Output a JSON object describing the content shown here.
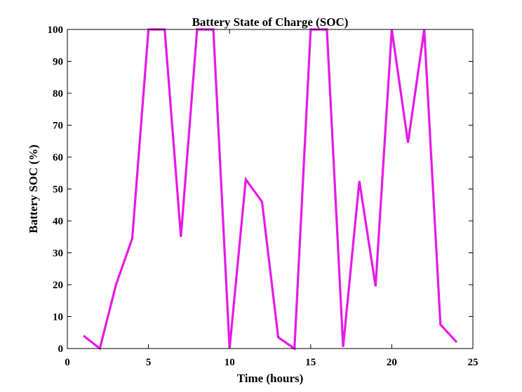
{
  "chart_data": {
    "type": "line",
    "title": "Battery State of Charge (SOC)",
    "xlabel": "Time (hours)",
    "ylabel": "Battery SOC (%)",
    "xlim": [
      0,
      25
    ],
    "ylim": [
      0,
      100
    ],
    "xticks": [
      0,
      5,
      10,
      15,
      20,
      25
    ],
    "yticks": [
      0,
      10,
      20,
      30,
      40,
      50,
      60,
      70,
      80,
      90,
      100
    ],
    "grid": false,
    "line_color": "#e619e6",
    "series": [
      {
        "x": [
          1,
          2,
          3,
          4,
          5,
          6,
          7,
          8,
          9,
          10,
          11,
          12,
          13,
          14,
          15,
          16,
          17,
          18,
          19,
          20,
          21,
          22,
          23,
          24
        ],
        "values": [
          4,
          0,
          20,
          34.5,
          100,
          100,
          35,
          100,
          100,
          0,
          53,
          46,
          3.5,
          0,
          100,
          100,
          0.5,
          52.5,
          19.5,
          100,
          64.5,
          100,
          7.5,
          2
        ]
      }
    ]
  }
}
